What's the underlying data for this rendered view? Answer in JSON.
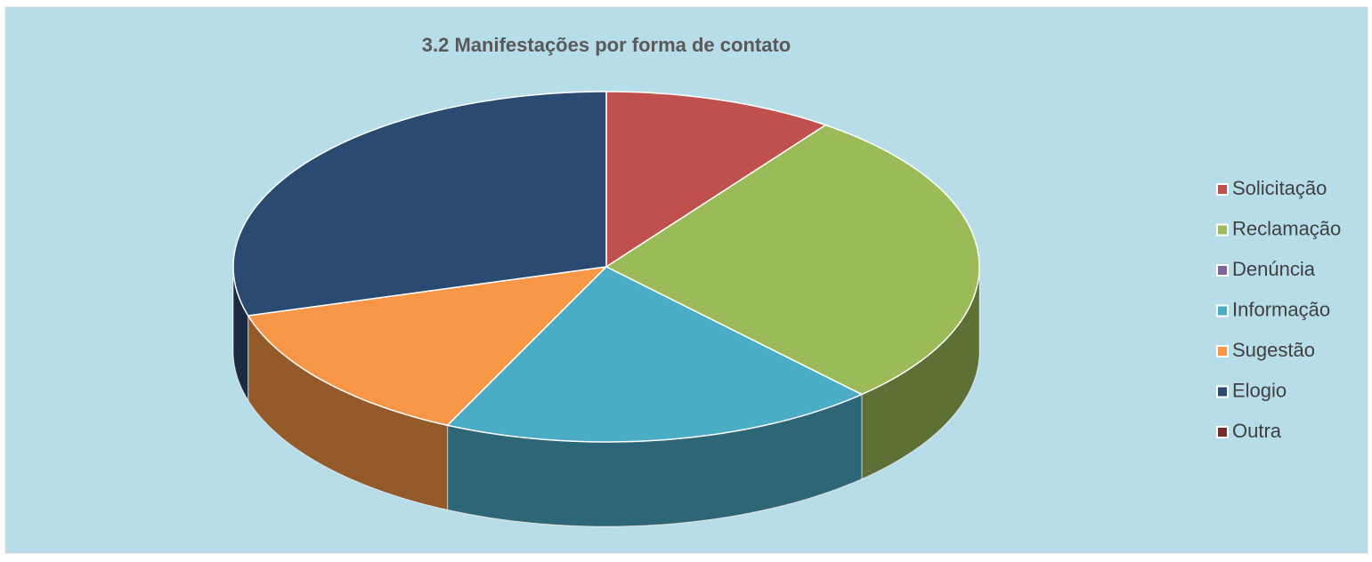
{
  "chart_data": {
    "type": "pie",
    "title": "3.2 Manifestações por forma de contato",
    "categories": [
      "Solicitação",
      "Reclamação",
      "Denúncia",
      "Informação",
      "Sugestão",
      "Elogio",
      "Outra"
    ],
    "values": [
      10,
      28,
      0,
      19,
      13.5,
      29.5,
      0
    ],
    "colors": [
      "#c0504d",
      "#9bbb59",
      "#8064a2",
      "#4bacc6",
      "#f79646",
      "#2a4a72",
      "#772c2a"
    ],
    "legend": "right"
  }
}
